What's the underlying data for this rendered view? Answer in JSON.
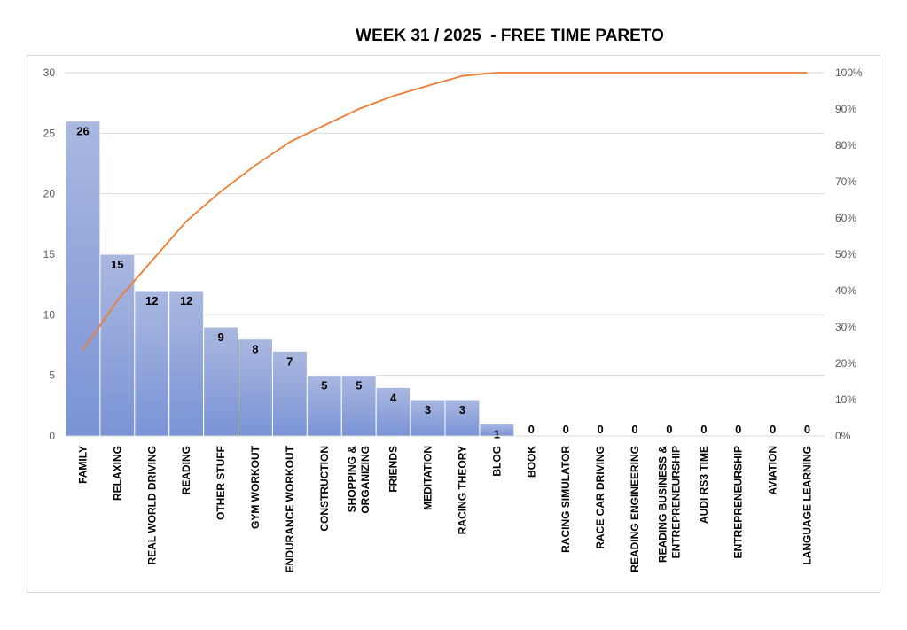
{
  "chart_data": {
    "type": "bar",
    "title": "WEEK 31 / 2025  - FREE TIME PARETO",
    "categories": [
      [
        "FAMILY"
      ],
      [
        "RELAXING"
      ],
      [
        "REAL WORLD DRIVING"
      ],
      [
        "READING"
      ],
      [
        "OTHER STUFF"
      ],
      [
        "GYM WORKOUT"
      ],
      [
        "ENDURANCE WORKOUT"
      ],
      [
        "CONSTRUCTION"
      ],
      [
        "SHOPPING &",
        "ORGANIZING"
      ],
      [
        "FRIENDS"
      ],
      [
        "MEDITATION"
      ],
      [
        "RACING THEORY"
      ],
      [
        "BLOG"
      ],
      [
        "BOOK"
      ],
      [
        "RACING SIMULATOR"
      ],
      [
        "RACE CAR DRIVING"
      ],
      [
        "READING ENGINEERING"
      ],
      [
        "READING BUSINESS &",
        "ENTREPRENEURSHIP"
      ],
      [
        "AUDI RS3 TIME"
      ],
      [
        "ENTREPRENEURSHIP"
      ],
      [
        "AVIATION"
      ],
      [
        "LANGUAGE LEARNING"
      ]
    ],
    "series": [
      {
        "values": [
          26,
          15,
          12,
          12,
          9,
          8,
          7,
          5,
          5,
          4,
          3,
          3,
          1,
          0,
          0,
          0,
          0,
          0,
          0,
          0,
          0,
          0
        ]
      },
      {
        "values": [
          0.236,
          0.373,
          0.482,
          0.591,
          0.673,
          0.745,
          0.809,
          0.855,
          0.9,
          0.936,
          0.964,
          0.991,
          1.0,
          1.0,
          1.0,
          1.0,
          1.0,
          1.0,
          1.0,
          1.0,
          1.0,
          1.0
        ]
      }
    ],
    "y_ticks": [
      "0",
      "5",
      "10",
      "15",
      "20",
      "25",
      "30"
    ],
    "y2_ticks": [
      "0%",
      "10%",
      "20%",
      "30%",
      "40%",
      "50%",
      "60%",
      "70%",
      "80%",
      "90%",
      "100%"
    ],
    "ylim": [
      0,
      30
    ],
    "y2lim": [
      0,
      1
    ],
    "grid": true,
    "legend": "none",
    "colors": {
      "bar_top": "#a9b8e0",
      "bar_bottom": "#7b93d6",
      "bar_edge": "#ffffff",
      "line": "#ed7d31",
      "grid": "#d9d9d9"
    }
  }
}
